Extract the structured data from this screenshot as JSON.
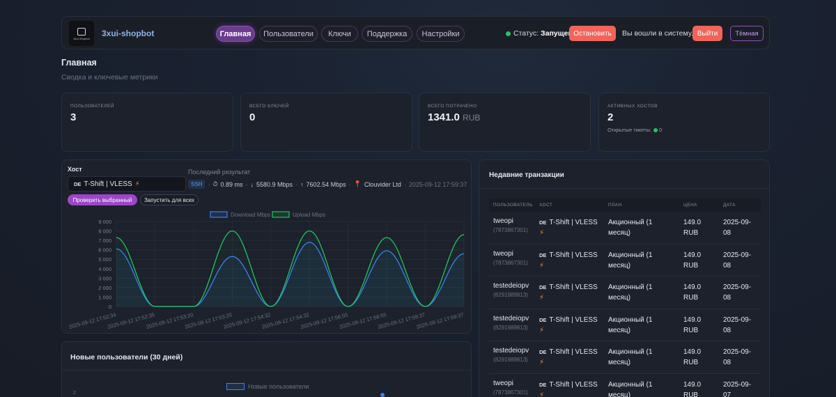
{
  "header": {
    "brand": "3xui-shopbot",
    "logo_text": "3xui-Shopbot",
    "tabs": [
      {
        "label": "Главная",
        "active": true
      },
      {
        "label": "Пользователи",
        "active": false
      },
      {
        "label": "Ключи",
        "active": false
      },
      {
        "label": "Поддержка",
        "active": false
      },
      {
        "label": "Настройки",
        "active": false
      }
    ],
    "status_label": "Статус:",
    "status_value": "Запущен",
    "stop_button": "Остановить",
    "logged_in_text": "Вы вошли в систему.",
    "logout_button": "Выйти",
    "theme_button": "Тёмная"
  },
  "page": {
    "title": "Главная",
    "subtitle": "Сводка и ключевые метрики"
  },
  "metrics": [
    {
      "label": "ПОЛЬЗОВАТЕЛЕЙ",
      "value": "3"
    },
    {
      "label": "ВСЕГО КЛЮЧЕЙ",
      "value": "0"
    },
    {
      "label": "ВСЕГО ПОТРАЧЕНО",
      "value": "1341.0",
      "unit": "RUB"
    },
    {
      "label": "АКТИВНЫХ ХОСТОВ",
      "value": "2",
      "extra_label": "Открытые тикеты:",
      "extra_value": "0"
    }
  ],
  "host_panel": {
    "label": "Хост",
    "selected_flag": "DE",
    "selected_host": "T-Shift | VLESS",
    "last_result_label": "Последний результат",
    "result": {
      "method": "SSH",
      "ping": "0.89 ms",
      "download": "5580.9 Mbps",
      "upload": "7602.54 Mbps",
      "provider": "Clouvider Ltd",
      "timestamp": "2025-09-12 17:59:37"
    },
    "check_button": "Проверить выбранный",
    "run_all_button": "Запустить для всех"
  },
  "chart_data": {
    "type": "line",
    "x": [
      "2025-09-12 17:52:34",
      "2025-09-12 17:52:35",
      "2025-09-12 17:53:20",
      "2025-09-12 17:53:20",
      "2025-09-12 17:54:32",
      "2025-09-12 17:54:32",
      "2025-09-12 17:56:55",
      "2025-09-12 17:56:55",
      "2025-09-12 17:59:37",
      "2025-09-12 17:59:37"
    ],
    "series": [
      {
        "name": "Download Mbps",
        "color": "#3b82f6",
        "values": [
          6100,
          0,
          0,
          5300,
          0,
          6800,
          0,
          5900,
          0,
          5580.9
        ]
      },
      {
        "name": "Upload Mbps",
        "color": "#22c55e",
        "values": [
          7300,
          0,
          0,
          8000,
          0,
          8000,
          0,
          7300,
          0,
          7602.54
        ]
      }
    ],
    "yticks": [
      "0",
      "1 000",
      "2 000",
      "3 000",
      "4 000",
      "5 000",
      "6 000",
      "7 000",
      "8 000",
      "9 000"
    ],
    "ylim": [
      0,
      9000
    ],
    "legend": "top",
    "grid": true
  },
  "users_panel": {
    "title": "Новые пользователи (30 дней)",
    "legend": "Новые пользователи",
    "top_tick": "2"
  },
  "transactions": {
    "title": "Недавние транзакции",
    "columns": [
      "ПОЛЬЗОВАТЕЛЬ",
      "ХОСТ",
      "ПЛАН",
      "ЦЕНА",
      "ДАТА"
    ],
    "rows": [
      {
        "user": "tweopi",
        "user_id": "(7873867301)",
        "flag": "DE",
        "host": "T-Shift | VLESS",
        "plan_1": "Акционный (1",
        "plan_2": "месяц)",
        "price_1": "149.0",
        "price_2": "RUB",
        "date_1": "2025-09-",
        "date_2": "08"
      },
      {
        "user": "tweopi",
        "user_id": "(7873867301)",
        "flag": "DE",
        "host": "T-Shift | VLESS",
        "plan_1": "Акционный (1",
        "plan_2": "месяц)",
        "price_1": "149.0",
        "price_2": "RUB",
        "date_1": "2025-09-",
        "date_2": "08"
      },
      {
        "user": "testedeiopv",
        "user_id": "(8291989813)",
        "flag": "DE",
        "host": "T-Shift | VLESS",
        "plan_1": "Акционный (1",
        "plan_2": "месяц)",
        "price_1": "149.0",
        "price_2": "RUB",
        "date_1": "2025-09-",
        "date_2": "08"
      },
      {
        "user": "testedeiopv",
        "user_id": "(8291989813)",
        "flag": "DE",
        "host": "T-Shift | VLESS",
        "plan_1": "Акционный (1",
        "plan_2": "месяц)",
        "price_1": "149.0",
        "price_2": "RUB",
        "date_1": "2025-09-",
        "date_2": "08"
      },
      {
        "user": "testedeiopv",
        "user_id": "(8291989813)",
        "flag": "DE",
        "host": "T-Shift | VLESS",
        "plan_1": "Акционный (1",
        "plan_2": "месяц)",
        "price_1": "149.0",
        "price_2": "RUB",
        "date_1": "2025-09-",
        "date_2": "08"
      },
      {
        "user": "tweopi",
        "user_id": "(7873867301)",
        "flag": "DE",
        "host": "T-Shift | VLESS",
        "plan_1": "Акционный (1",
        "plan_2": "месяц)",
        "price_1": "149.0",
        "price_2": "RUB",
        "date_1": "2025-09-",
        "date_2": "07"
      }
    ]
  },
  "colors": {
    "accent": "#9b46c7",
    "danger": "#f0645a",
    "success": "#22c55e",
    "download": "#3b82f6",
    "upload": "#22c55e"
  },
  "icons": {
    "edit": "pencil-icon",
    "status": "status-dot-icon",
    "host": "lightning-icon",
    "ping": "stopwatch-icon",
    "location": "pin-icon"
  }
}
